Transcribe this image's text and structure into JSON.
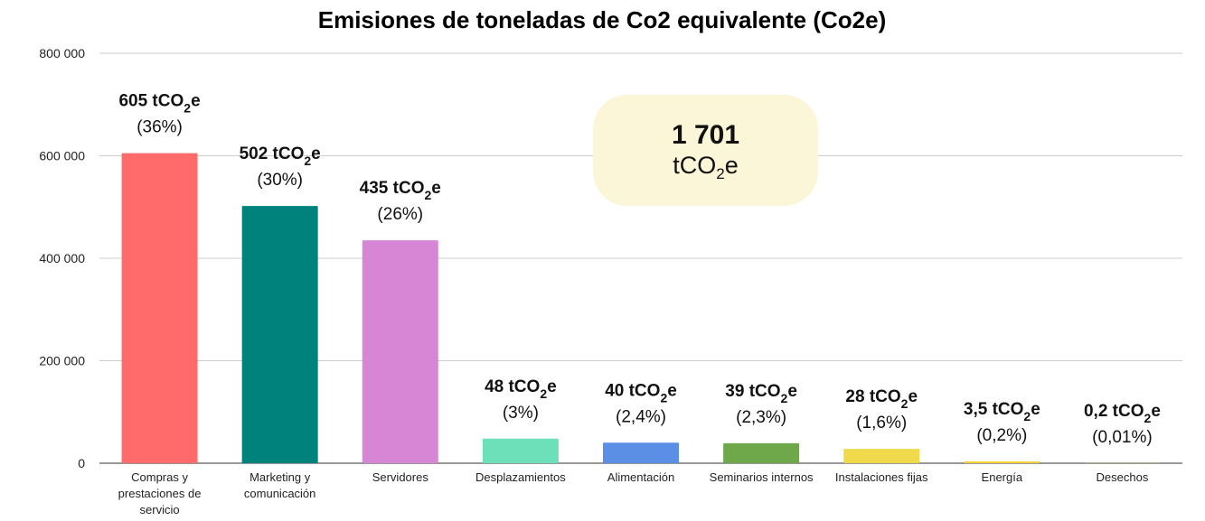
{
  "chart_data": {
    "type": "bar",
    "title": "Emisiones de toneladas de Co2 equivalente (Co2e)",
    "xlabel": "",
    "ylabel": "",
    "ylim": [
      0,
      800000
    ],
    "yticks": [
      "0",
      "200 000",
      "400 000",
      "600 000",
      "800 000"
    ],
    "ytick_values": [
      0,
      200000,
      400000,
      600000,
      800000
    ],
    "grid": true,
    "legend": "none",
    "unit_prefix": "tCO",
    "unit_subscript": "2",
    "unit_suffix": "e",
    "categories": [
      "Compras y prestaciones de servicio",
      "Marketing y comunicación",
      "Servidores",
      "Desplazamientos",
      "Alimentación",
      "Seminarios internos",
      "Instalaciones fijas",
      "Energía",
      "Desechos"
    ],
    "category_lines": [
      [
        "Compras y",
        "prestaciones de",
        "servicio"
      ],
      [
        "Marketing y",
        "comunicación"
      ],
      [
        "Servidores"
      ],
      [
        "Desplazamientos"
      ],
      [
        "Alimentación"
      ],
      [
        "Seminarios internos"
      ],
      [
        "Instalaciones fijas"
      ],
      [
        "Energía"
      ],
      [
        "Desechos"
      ]
    ],
    "values": [
      605000,
      502000,
      435000,
      48000,
      40000,
      39000,
      28000,
      3500,
      200
    ],
    "value_labels": [
      "605",
      "502",
      "435",
      "48",
      "40",
      "39",
      "28",
      "3,5",
      "0,2"
    ],
    "percent_labels": [
      "(36%)",
      "(30%)",
      "(26%)",
      "(3%)",
      "(2,4%)",
      "(2,3%)",
      "(1,6%)",
      "(0,2%)",
      "(0,01%)"
    ],
    "colors": [
      "#ff6b6b",
      "#00827c",
      "#d786d6",
      "#6ee0b9",
      "#5b8fe6",
      "#6fa84a",
      "#f0d94a",
      "#f3d23b",
      "#e8c83a"
    ],
    "total": {
      "value": "1 701",
      "unit_prefix": "tCO",
      "unit_subscript": "2",
      "unit_suffix": "e",
      "background": "#fbf6d7"
    }
  }
}
